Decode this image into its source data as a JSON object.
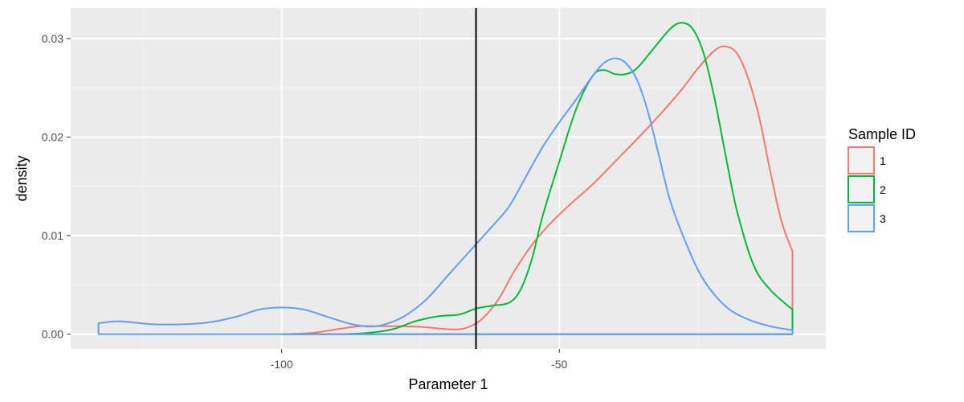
{
  "chart_data": {
    "type": "area",
    "xlabel": "Parameter 1",
    "ylabel": "density",
    "xlim": [
      -138,
      -2
    ],
    "ylim": [
      -0.0015,
      0.0331
    ],
    "x_ticks": [
      -100,
      -50
    ],
    "x_minor_ticks": [
      -125,
      -75,
      -25
    ],
    "y_ticks": [
      0.0,
      0.01,
      0.02,
      0.03
    ],
    "y_tick_labels": [
      "0.00",
      "0.01",
      "0.02",
      "0.03"
    ],
    "y_minor_ticks": [
      0.005,
      0.015,
      0.025
    ],
    "grid": true,
    "vline": -65,
    "background": "#ebebeb",
    "legend": {
      "title": "Sample ID",
      "position": "right"
    },
    "series": [
      {
        "name": "1",
        "color": "#F8766D",
        "x_range": [
          -100,
          -8
        ],
        "points": [
          [
            -100,
            0.0
          ],
          [
            -95,
            0.0001
          ],
          [
            -90,
            0.0005
          ],
          [
            -86,
            0.0008
          ],
          [
            -82,
            0.0008
          ],
          [
            -78,
            0.0008
          ],
          [
            -74,
            0.0007
          ],
          [
            -70,
            0.0005
          ],
          [
            -67,
            0.0006
          ],
          [
            -64,
            0.0015
          ],
          [
            -61,
            0.0035
          ],
          [
            -58,
            0.0065
          ],
          [
            -55,
            0.009
          ],
          [
            -52,
            0.011
          ],
          [
            -48,
            0.0132
          ],
          [
            -44,
            0.0152
          ],
          [
            -40,
            0.0175
          ],
          [
            -36,
            0.0198
          ],
          [
            -32,
            0.0222
          ],
          [
            -28,
            0.0248
          ],
          [
            -25,
            0.027
          ],
          [
            -22,
            0.0288
          ],
          [
            -20,
            0.0292
          ],
          [
            -18,
            0.0285
          ],
          [
            -16,
            0.026
          ],
          [
            -14,
            0.022
          ],
          [
            -12,
            0.0165
          ],
          [
            -10,
            0.0115
          ],
          [
            -8,
            0.0084
          ]
        ]
      },
      {
        "name": "2",
        "color": "#00BA38",
        "x_range": [
          -100,
          -8
        ],
        "points": [
          [
            -100,
            0.0
          ],
          [
            -90,
            0.0
          ],
          [
            -85,
            0.0001
          ],
          [
            -80,
            0.0005
          ],
          [
            -76,
            0.0013
          ],
          [
            -72,
            0.0018
          ],
          [
            -68,
            0.002
          ],
          [
            -65,
            0.0026
          ],
          [
            -62,
            0.0029
          ],
          [
            -59,
            0.0032
          ],
          [
            -57,
            0.0045
          ],
          [
            -55,
            0.0075
          ],
          [
            -53,
            0.012
          ],
          [
            -50,
            0.0175
          ],
          [
            -47,
            0.0228
          ],
          [
            -44,
            0.0262
          ],
          [
            -42,
            0.0268
          ],
          [
            -40,
            0.0264
          ],
          [
            -38,
            0.0264
          ],
          [
            -36,
            0.027
          ],
          [
            -33,
            0.029
          ],
          [
            -30,
            0.031
          ],
          [
            -28,
            0.0316
          ],
          [
            -26,
            0.031
          ],
          [
            -24,
            0.0285
          ],
          [
            -22,
            0.0238
          ],
          [
            -20,
            0.018
          ],
          [
            -18,
            0.0125
          ],
          [
            -15,
            0.007
          ],
          [
            -12,
            0.0045
          ],
          [
            -8,
            0.0025
          ]
        ]
      },
      {
        "name": "3",
        "color": "#619CFF",
        "x_range": [
          -133,
          -8
        ],
        "points": [
          [
            -133,
            0.0011
          ],
          [
            -130,
            0.0013
          ],
          [
            -127,
            0.0012
          ],
          [
            -123,
            0.001
          ],
          [
            -118,
            0.001
          ],
          [
            -113,
            0.0012
          ],
          [
            -108,
            0.0018
          ],
          [
            -104,
            0.0025
          ],
          [
            -100,
            0.0027
          ],
          [
            -96,
            0.0025
          ],
          [
            -92,
            0.0018
          ],
          [
            -88,
            0.0011
          ],
          [
            -85,
            0.0008
          ],
          [
            -82,
            0.0009
          ],
          [
            -78,
            0.0018
          ],
          [
            -74,
            0.0035
          ],
          [
            -70,
            0.006
          ],
          [
            -66,
            0.0085
          ],
          [
            -62,
            0.011
          ],
          [
            -59,
            0.013
          ],
          [
            -56,
            0.016
          ],
          [
            -53,
            0.019
          ],
          [
            -50,
            0.0215
          ],
          [
            -47,
            0.0238
          ],
          [
            -44,
            0.0262
          ],
          [
            -42,
            0.0275
          ],
          [
            -40,
            0.028
          ],
          [
            -38,
            0.0275
          ],
          [
            -36,
            0.0258
          ],
          [
            -34,
            0.0225
          ],
          [
            -32,
            0.018
          ],
          [
            -30,
            0.0135
          ],
          [
            -27,
            0.009
          ],
          [
            -24,
            0.0055
          ],
          [
            -20,
            0.0028
          ],
          [
            -16,
            0.0015
          ],
          [
            -12,
            0.0008
          ],
          [
            -8,
            0.0004
          ]
        ]
      }
    ]
  }
}
